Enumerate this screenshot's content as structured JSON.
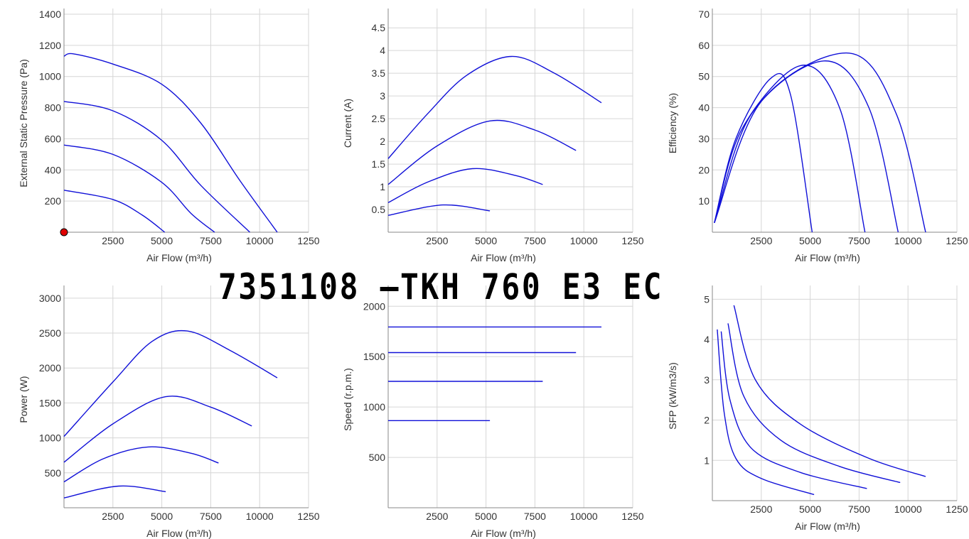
{
  "title": "7351108 –TKH 760 E3 EC",
  "colors": {
    "curve": "#1010d8",
    "grid": "#d6d6d6",
    "axis": "#888888",
    "marker": "#e00000"
  },
  "chart_data": [
    {
      "type": "line",
      "ylabel": "External Static Pressure (Pa)",
      "xlabel": "Air Flow (m³/h)",
      "x_ticks": [
        "2500",
        "5000",
        "7500",
        "10000",
        "1250"
      ],
      "y_ticks": [
        "200",
        "400",
        "600",
        "800",
        "1000",
        "1200",
        "1400"
      ],
      "xlim": [
        0,
        12500
      ],
      "ylim": [
        0,
        1400
      ],
      "series": [
        {
          "points": [
            [
              0,
              1130
            ],
            [
              500,
              1145
            ],
            [
              2500,
              1080
            ],
            [
              5000,
              950
            ],
            [
              7000,
              700
            ],
            [
              9000,
              330
            ],
            [
              10900,
              0
            ]
          ]
        },
        {
          "points": [
            [
              0,
              840
            ],
            [
              2500,
              780
            ],
            [
              5000,
              590
            ],
            [
              7000,
              300
            ],
            [
              9500,
              0
            ]
          ]
        },
        {
          "points": [
            [
              0,
              560
            ],
            [
              2500,
              500
            ],
            [
              5000,
              320
            ],
            [
              6500,
              120
            ],
            [
              7700,
              0
            ]
          ]
        },
        {
          "points": [
            [
              0,
              270
            ],
            [
              2500,
              210
            ],
            [
              4000,
              110
            ],
            [
              5150,
              0
            ]
          ]
        }
      ],
      "marker": [
        0,
        0
      ]
    },
    {
      "type": "line",
      "ylabel": "Current (A)",
      "xlabel": "Air Flow (m³/h)",
      "x_ticks": [
        "2500",
        "5000",
        "7500",
        "10000",
        "1250"
      ],
      "y_ticks": [
        "0.5",
        "1",
        "1.5",
        "2",
        "2.5",
        "3",
        "3.5",
        "4",
        "4.5"
      ],
      "xlim": [
        0,
        12500
      ],
      "ylim": [
        0,
        4.8
      ],
      "series": [
        {
          "points": [
            [
              0,
              1.62
            ],
            [
              2000,
              2.6
            ],
            [
              4000,
              3.45
            ],
            [
              6300,
              3.87
            ],
            [
              8500,
              3.5
            ],
            [
              10900,
              2.85
            ]
          ]
        },
        {
          "points": [
            [
              0,
              1.05
            ],
            [
              2500,
              1.9
            ],
            [
              5200,
              2.45
            ],
            [
              7500,
              2.25
            ],
            [
              9600,
              1.8
            ]
          ]
        },
        {
          "points": [
            [
              0,
              0.65
            ],
            [
              2000,
              1.1
            ],
            [
              4300,
              1.4
            ],
            [
              6500,
              1.25
            ],
            [
              7900,
              1.05
            ]
          ]
        },
        {
          "points": [
            [
              0,
              0.37
            ],
            [
              2800,
              0.6
            ],
            [
              5200,
              0.47
            ]
          ]
        }
      ]
    },
    {
      "type": "line",
      "ylabel": "Efficiency (%)",
      "xlabel": "Air Flow (m³/h)",
      "x_ticks": [
        "2500",
        "5000",
        "7500",
        "10000",
        "1250"
      ],
      "y_ticks": [
        "10",
        "20",
        "30",
        "40",
        "50",
        "60",
        "70"
      ],
      "xlim": [
        0,
        12500
      ],
      "ylim": [
        0,
        70
      ],
      "series": [
        {
          "points": [
            [
              100,
              3
            ],
            [
              1200,
              30
            ],
            [
              3000,
              49.5
            ],
            [
              4000,
              44
            ],
            [
              5100,
              0
            ]
          ]
        },
        {
          "points": [
            [
              100,
              3
            ],
            [
              1500,
              33
            ],
            [
              4500,
              53.5
            ],
            [
              6500,
              40
            ],
            [
              7800,
              0
            ]
          ]
        },
        {
          "points": [
            [
              100,
              3
            ],
            [
              2000,
              38
            ],
            [
              5700,
              55
            ],
            [
              8000,
              40
            ],
            [
              9500,
              0
            ]
          ]
        },
        {
          "points": [
            [
              100,
              3
            ],
            [
              2500,
              42
            ],
            [
              7000,
              57.5
            ],
            [
              9400,
              38
            ],
            [
              10900,
              0
            ]
          ]
        }
      ]
    },
    {
      "type": "line",
      "ylabel": "Power (W)",
      "xlabel": "Air Flow (m³/h)",
      "x_ticks": [
        "2500",
        "5000",
        "7500",
        "10000",
        "1250"
      ],
      "y_ticks": [
        "500",
        "1000",
        "1500",
        "2000",
        "2500",
        "3000"
      ],
      "xlim": [
        0,
        12500
      ],
      "ylim": [
        0,
        3100
      ],
      "series": [
        {
          "points": [
            [
              0,
              1020
            ],
            [
              2500,
              1800
            ],
            [
              4500,
              2380
            ],
            [
              6300,
              2530
            ],
            [
              8500,
              2250
            ],
            [
              10900,
              1860
            ]
          ]
        },
        {
          "points": [
            [
              0,
              650
            ],
            [
              2500,
              1200
            ],
            [
              5200,
              1590
            ],
            [
              7500,
              1440
            ],
            [
              9600,
              1170
            ]
          ]
        },
        {
          "points": [
            [
              0,
              370
            ],
            [
              2000,
              700
            ],
            [
              4300,
              870
            ],
            [
              6500,
              780
            ],
            [
              7900,
              640
            ]
          ]
        },
        {
          "points": [
            [
              0,
              140
            ],
            [
              2800,
              310
            ],
            [
              5200,
              230
            ]
          ]
        }
      ]
    },
    {
      "type": "line",
      "ylabel": "Speed (r.p.m.)",
      "xlabel": "Air Flow (m³/h)",
      "x_ticks": [
        "2500",
        "5000",
        "7500",
        "10000",
        "1250"
      ],
      "y_ticks": [
        "500",
        "1000",
        "1500",
        "2000"
      ],
      "xlim": [
        0,
        12500
      ],
      "ylim": [
        0,
        2150
      ],
      "series": [
        {
          "points": [
            [
              0,
              1795
            ],
            [
              10900,
              1795
            ]
          ]
        },
        {
          "points": [
            [
              0,
              1540
            ],
            [
              9600,
              1540
            ]
          ]
        },
        {
          "points": [
            [
              0,
              1255
            ],
            [
              7900,
              1255
            ]
          ]
        },
        {
          "points": [
            [
              0,
              865
            ],
            [
              5200,
              865
            ]
          ]
        }
      ]
    },
    {
      "type": "line",
      "ylabel": "SFP (kW/m3/s)",
      "xlabel": "Air Flow (m³/h)",
      "x_ticks": [
        "2500",
        "5000",
        "7500",
        "10000",
        "1250"
      ],
      "y_ticks": [
        "1",
        "2",
        "3",
        "4",
        "5"
      ],
      "xlim": [
        0,
        12500
      ],
      "ylim": [
        0,
        5.2
      ],
      "series": [
        {
          "points": [
            [
              250,
              4.25
            ],
            [
              600,
              2.2
            ],
            [
              1200,
              1.05
            ],
            [
              2500,
              0.55
            ],
            [
              5200,
              0.15
            ]
          ]
        },
        {
          "points": [
            [
              450,
              4.2
            ],
            [
              900,
              2.5
            ],
            [
              2000,
              1.3
            ],
            [
              4500,
              0.7
            ],
            [
              7900,
              0.3
            ]
          ]
        },
        {
          "points": [
            [
              800,
              4.4
            ],
            [
              1600,
              2.6
            ],
            [
              3500,
              1.5
            ],
            [
              6500,
              0.85
            ],
            [
              9600,
              0.45
            ]
          ]
        },
        {
          "points": [
            [
              1100,
              4.85
            ],
            [
              2200,
              3.0
            ],
            [
              4500,
              1.9
            ],
            [
              8000,
              1.05
            ],
            [
              10900,
              0.6
            ]
          ]
        }
      ]
    }
  ]
}
